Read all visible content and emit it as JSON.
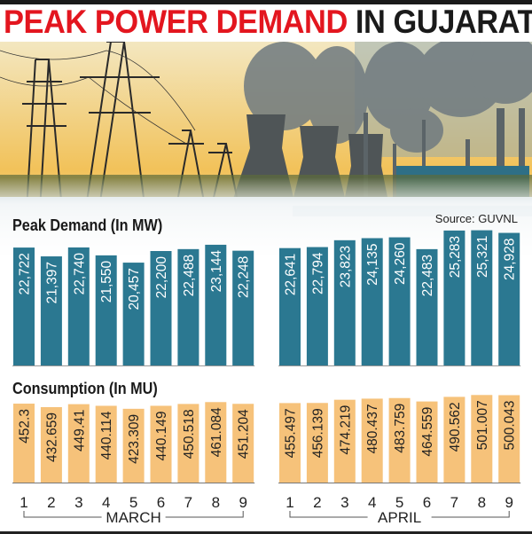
{
  "title": {
    "part1": "PEAK POWER DEMAND",
    "part2": "IN GUJARAT"
  },
  "source": "Source: GUVNL",
  "colors": {
    "title_red": "#e3161f",
    "demand_bar": "#2b7891",
    "consumption_bar": "#f6c27a"
  },
  "chart_data": [
    {
      "type": "bar",
      "title": "Peak Demand (In MW)",
      "categories": [
        "1",
        "2",
        "3",
        "4",
        "5",
        "6",
        "7",
        "8",
        "9"
      ],
      "groups": [
        "MARCH",
        "APRIL"
      ],
      "series": [
        {
          "group": "MARCH",
          "values": [
            22722,
            21397,
            22740,
            21550,
            20457,
            22200,
            22488,
            23144,
            22248
          ],
          "labels": [
            "22,722",
            "21,397",
            "22,740",
            "21,550",
            "20,457",
            "22,200",
            "22,488",
            "23,144",
            "22,248"
          ]
        },
        {
          "group": "APRIL",
          "values": [
            22641,
            22794,
            23823,
            24135,
            24260,
            22483,
            25283,
            25321,
            24928
          ],
          "labels": [
            "22,641",
            "22,794",
            "23,823",
            "24,135",
            "24,260",
            "22,483",
            "25,283",
            "25,321",
            "24,928"
          ]
        }
      ]
    },
    {
      "type": "bar",
      "title": "Consumption (In MU)",
      "categories": [
        "1",
        "2",
        "3",
        "4",
        "5",
        "6",
        "7",
        "8",
        "9"
      ],
      "groups": [
        "MARCH",
        "APRIL"
      ],
      "series": [
        {
          "group": "MARCH",
          "values": [
            452.3,
            432.659,
            449.41,
            440.114,
            423.309,
            440.149,
            450.518,
            461.084,
            451.204
          ],
          "labels": [
            "452.3",
            "432.659",
            "449.41",
            "440.114",
            "423.309",
            "440.149",
            "450.518",
            "461.084",
            "451.204"
          ]
        },
        {
          "group": "APRIL",
          "values": [
            455.497,
            456.139,
            474.219,
            480.437,
            483.759,
            464.559,
            490.562,
            501.007,
            500.043
          ],
          "labels": [
            "455.497",
            "456.139",
            "474.219",
            "480.437",
            "483.759",
            "464.559",
            "490.562",
            "501.007",
            "500.043"
          ]
        }
      ]
    }
  ]
}
